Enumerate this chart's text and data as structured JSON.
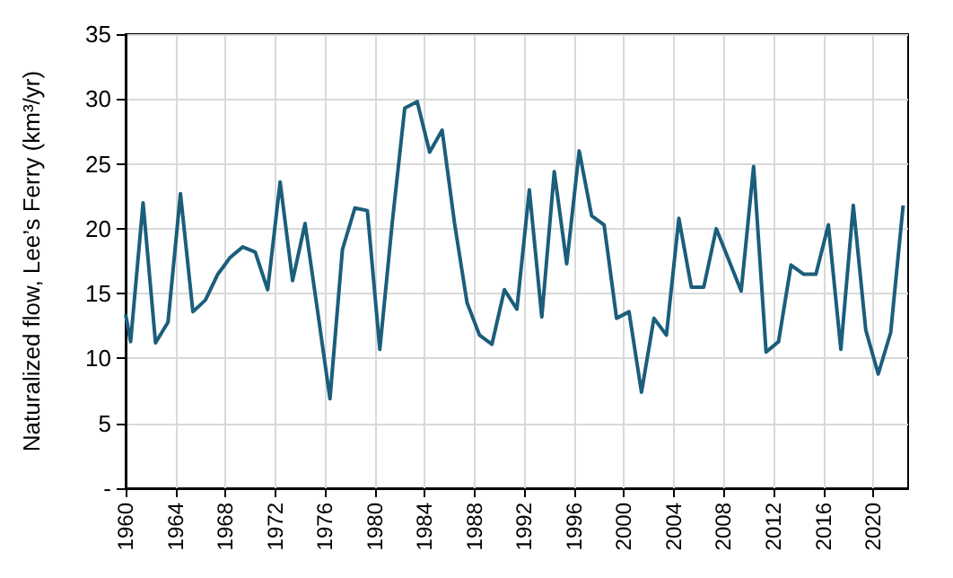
{
  "chart_data": {
    "type": "line",
    "ylabel": "Naturalized flow, Lee’s Ferry (km³/yr)",
    "x": [
      1960,
      1960.4,
      1961.4,
      1962.4,
      1963.4,
      1964.4,
      1965.4,
      1966.4,
      1967.4,
      1968.4,
      1969.4,
      1970.4,
      1971.4,
      1972.4,
      1973.4,
      1974.4,
      1975.4,
      1976.4,
      1977.4,
      1978.4,
      1979.4,
      1980.4,
      1981.4,
      1982.4,
      1983.4,
      1984.4,
      1985.4,
      1986.4,
      1987.4,
      1988.4,
      1989.4,
      1990.4,
      1991.4,
      1992.4,
      1993.4,
      1994.4,
      1995.4,
      1996.4,
      1997.4,
      1998.4,
      1999.4,
      2000.4,
      2001.4,
      2002.4,
      2003.4,
      2004.4,
      2005.4,
      2006.4,
      2007.4,
      2008.4,
      2009.4,
      2010.4,
      2011.4,
      2012.4,
      2013.4,
      2014.4,
      2015.4,
      2016.4,
      2017.4,
      2018.4,
      2019.4,
      2020.4,
      2021.4,
      2022.4
    ],
    "series": [
      {
        "color": "#1b5e7b",
        "values": [
          13.4,
          11.3,
          22.0,
          11.2,
          12.8,
          22.7,
          13.6,
          14.5,
          16.5,
          17.8,
          18.6,
          18.2,
          15.3,
          23.6,
          16.0,
          20.4,
          13.7,
          6.9,
          18.4,
          21.6,
          21.4,
          10.7,
          20.5,
          29.3,
          29.8,
          25.9,
          27.6,
          20.4,
          14.3,
          11.8,
          11.1,
          15.3,
          13.8,
          23.0,
          13.2,
          24.4,
          17.3,
          26.0,
          21.0,
          20.3,
          13.1,
          13.6,
          7.4,
          13.1,
          11.8,
          20.8,
          15.5,
          15.5,
          20.0,
          17.6,
          15.2,
          24.8,
          10.5,
          11.3,
          17.2,
          16.5,
          16.5,
          20.3,
          10.7,
          21.8,
          12.2,
          8.8,
          12.0,
          21.8
        ]
      }
    ],
    "xlim": [
      1960,
      2022.8
    ],
    "xticks": [
      1960,
      1964,
      1968,
      1972,
      1976,
      1980,
      1984,
      1988,
      1992,
      1996,
      2000,
      2004,
      2008,
      2012,
      2016,
      2020
    ],
    "ylim": [
      0,
      35
    ],
    "yticks": [
      {
        "value": 0,
        "label": "-"
      },
      5,
      10,
      15,
      20,
      25,
      30,
      35
    ],
    "grid": true,
    "marker": "none",
    "line_style": "solid"
  }
}
